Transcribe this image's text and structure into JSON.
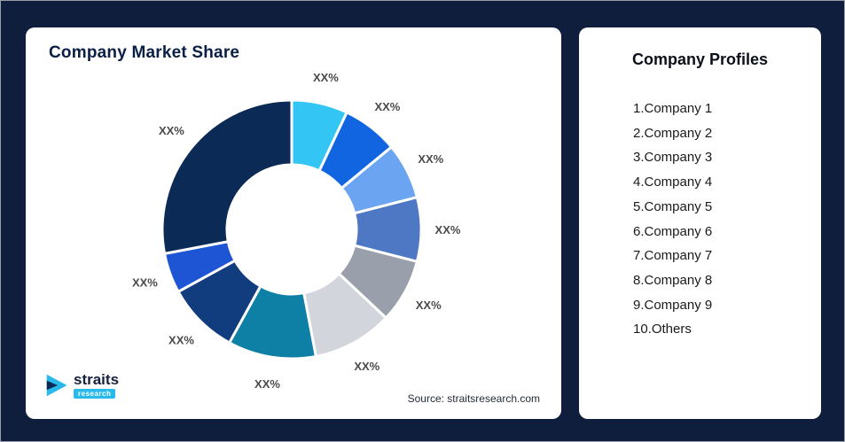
{
  "background": "#101E3E",
  "left_card": {
    "title": "Company Market Share",
    "source": "Source: straitsresearch.com"
  },
  "logo": {
    "name": "straits",
    "sub": "research"
  },
  "right_card": {
    "title": "Company Profiles",
    "items": [
      "1.Company 1",
      "2.Company 2",
      "3.Company 3",
      "4.Company 4",
      "5.Company 5",
      "6.Company 6",
      "7.Company 7",
      "8.Company 8",
      "9.Company 9",
      "10.Others"
    ]
  },
  "chart_data": {
    "type": "pie",
    "subtype": "donut",
    "title": "Company Market Share",
    "labels": [
      "XX%",
      "XX%",
      "XX%",
      "XX%",
      "XX%",
      "XX%",
      "XX%",
      "XX%",
      "XX%",
      "XX%"
    ],
    "values": [
      7,
      7,
      7,
      8,
      8,
      10,
      11,
      9,
      5,
      28
    ],
    "colors": [
      "#33C5F3",
      "#1165E0",
      "#6BA5F2",
      "#4F78C4",
      "#99A0AB",
      "#D2D6DC",
      "#0E7FA5",
      "#113C7E",
      "#1D55D4",
      "#0C2A56"
    ],
    "start_angle_deg": 0,
    "clockwise": true,
    "inner_radius_ratio": 0.5,
    "legend": "none",
    "source": "Source: straitsresearch.com"
  }
}
